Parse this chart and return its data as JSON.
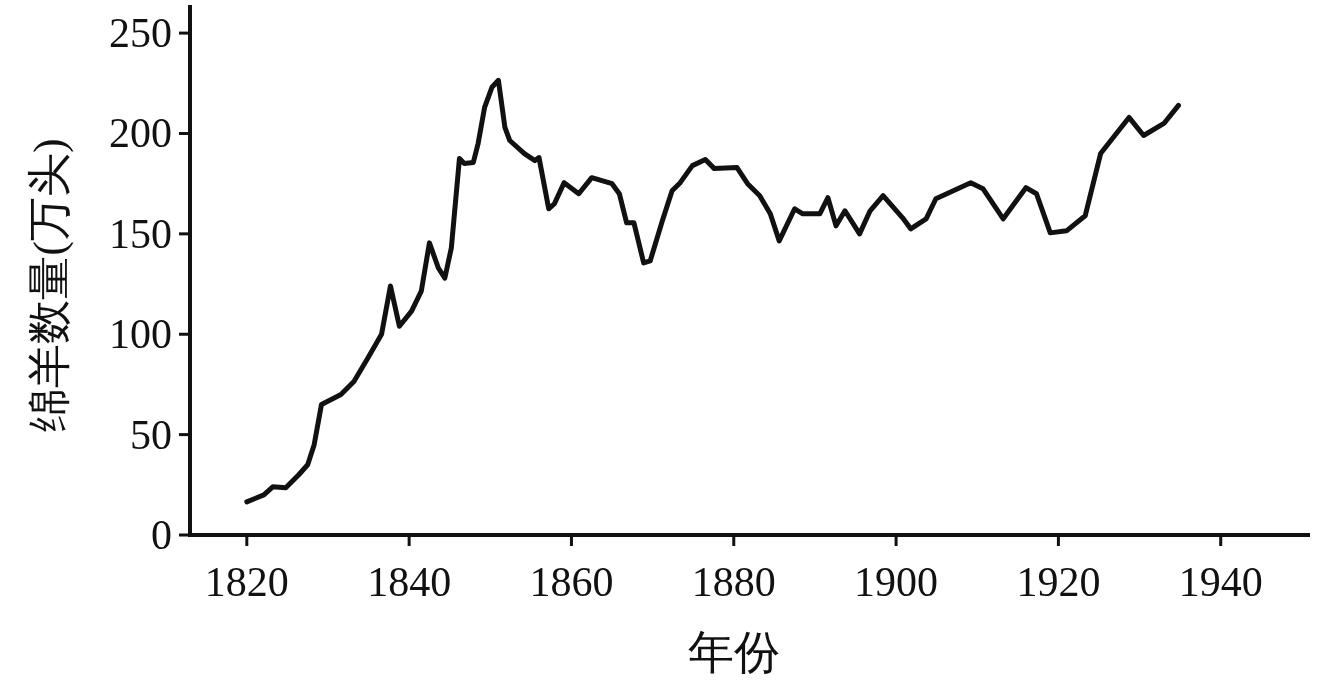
{
  "chart_data": {
    "type": "line",
    "xlabel": "年份",
    "ylabel": "绵羊数量(万头)",
    "xlim": [
      1813,
      1951
    ],
    "xticks": [
      1820,
      1840,
      1860,
      1880,
      1900,
      1920,
      1940
    ],
    "ylim": [
      0,
      264
    ],
    "yticks": [
      0,
      50,
      100,
      150,
      200,
      250
    ],
    "grid": false,
    "series": [
      {
        "color": "#111111",
        "x": [
          1820.0,
          1822.1,
          1823.2,
          1824.8,
          1826.4,
          1827.5,
          1828.3,
          1829.2,
          1831.6,
          1833.2,
          1834.9,
          1836.6,
          1837.7,
          1838.8,
          1840.3,
          1841.5,
          1842.5,
          1843.6,
          1844.4,
          1845.2,
          1846.2,
          1846.8,
          1847.9,
          1848.5,
          1849.3,
          1850.2,
          1851.0,
          1851.8,
          1852.4,
          1854.2,
          1855.5,
          1856.0,
          1857.2,
          1857.9,
          1859.1,
          1860.9,
          1862.5,
          1865.0,
          1865.9,
          1866.8,
          1867.7,
          1868.9,
          1869.7,
          1871.2,
          1872.4,
          1873.4,
          1874.9,
          1876.5,
          1877.6,
          1880.4,
          1881.7,
          1883.2,
          1884.5,
          1885.6,
          1887.5,
          1888.5,
          1890.6,
          1891.6,
          1892.6,
          1893.7,
          1895.5,
          1896.8,
          1898.4,
          1900.8,
          1901.8,
          1903.7,
          1904.9,
          1909.2,
          1910.7,
          1913.2,
          1916.0,
          1917.3,
          1919.0,
          1921.0,
          1923.3,
          1925.2,
          1928.7,
          1930.5,
          1933.0,
          1934.8
        ],
        "values": [
          16.5,
          20,
          24,
          23.5,
          30,
          35,
          45,
          65,
          70,
          76.5,
          88,
          100,
          124,
          104,
          111.5,
          121.5,
          145.5,
          133,
          128,
          143,
          187.5,
          185,
          185.5,
          195,
          213,
          223,
          226.5,
          203,
          196.5,
          190,
          186.5,
          188,
          162.5,
          165,
          175.5,
          170,
          178,
          175,
          170,
          155.5,
          155.5,
          135.5,
          136.5,
          156.5,
          171.5,
          175.5,
          184,
          187,
          182.5,
          183,
          175,
          169,
          160,
          146.5,
          162.5,
          160,
          160,
          168,
          154,
          161.5,
          150,
          161.5,
          169,
          158,
          152.5,
          157.5,
          167.5,
          175.5,
          172.5,
          157.5,
          173,
          170,
          150.5,
          151.5,
          159,
          190,
          208,
          199,
          205,
          214
        ]
      }
    ]
  }
}
